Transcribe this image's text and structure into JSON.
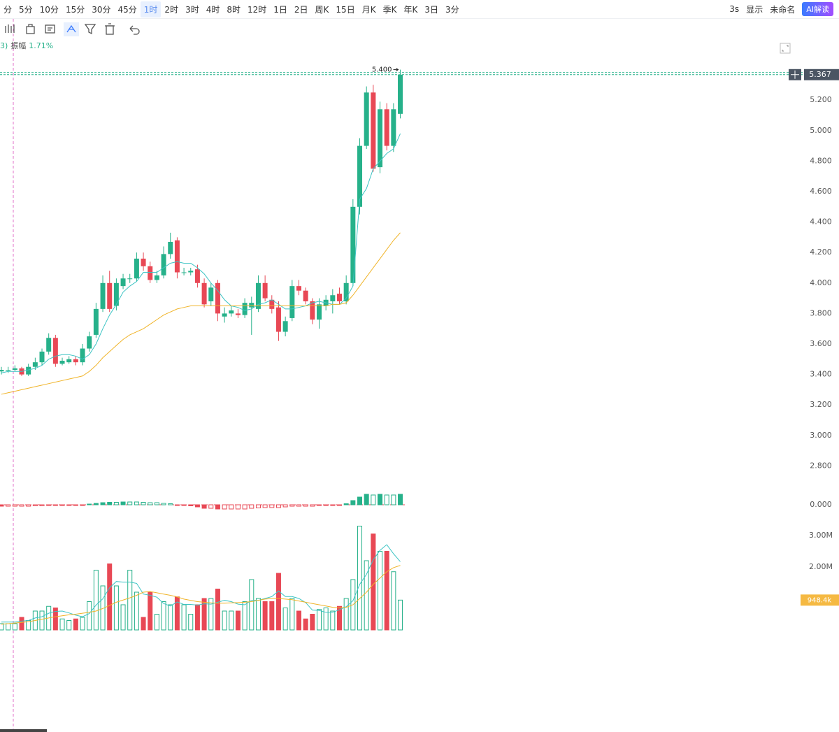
{
  "toolbar": {
    "timeframes": [
      "分",
      "5分",
      "10分",
      "15分",
      "30分",
      "45分",
      "1时",
      "2时",
      "3时",
      "4时",
      "8时",
      "12时",
      "1日",
      "2日",
      "周K",
      "15日",
      "月K",
      "季K",
      "年K",
      "3日",
      "3分"
    ],
    "active_index": 6,
    "right": [
      "3s",
      "显示",
      "未命名",
      "AI解读"
    ]
  },
  "info": {
    "prefix": "3)",
    "amplitude_label": "振幅",
    "amplitude": "1.71%"
  },
  "chart_data": {
    "type": "candlestick",
    "open": [
      3.42,
      3.43,
      3.43,
      3.44,
      3.4,
      3.45,
      3.48,
      3.55,
      3.64,
      3.47,
      3.48,
      3.5,
      3.48,
      3.57,
      3.66,
      3.83,
      4.0,
      3.85,
      3.98,
      4.03,
      4.03,
      4.16,
      4.11,
      4.02,
      4.05,
      4.19,
      4.28,
      4.07,
      4.07,
      4.09,
      4.0,
      3.88,
      4.0,
      3.78,
      3.8,
      3.8,
      3.79,
      3.84,
      3.83,
      4.0,
      3.89,
      3.84,
      3.68,
      3.77,
      3.98,
      3.95,
      3.88,
      3.76,
      3.85,
      3.88,
      3.93,
      3.88,
      4.0,
      4.5,
      4.9,
      5.25,
      4.76,
      5.14,
      4.9,
      5.11
    ],
    "high": [
      3.45,
      3.45,
      3.46,
      3.45,
      3.47,
      3.51,
      3.57,
      3.67,
      3.66,
      3.51,
      3.52,
      3.52,
      3.6,
      3.68,
      3.87,
      4.05,
      4.08,
      4.03,
      4.06,
      4.06,
      4.2,
      4.2,
      4.14,
      4.08,
      4.24,
      4.33,
      4.3,
      4.1,
      4.1,
      4.12,
      4.03,
      4.0,
      4.02,
      3.84,
      3.85,
      3.83,
      3.9,
      3.91,
      4.05,
      4.05,
      3.92,
      3.88,
      3.78,
      4.02,
      4.02,
      3.97,
      3.9,
      3.9,
      3.92,
      3.96,
      3.97,
      4.05,
      4.55,
      4.95,
      5.29,
      5.3,
      5.19,
      5.18,
      5.18,
      5.4
    ],
    "low": [
      3.4,
      3.41,
      3.42,
      3.39,
      3.39,
      3.43,
      3.46,
      3.53,
      3.45,
      3.46,
      3.47,
      3.46,
      3.46,
      3.55,
      3.64,
      3.81,
      3.81,
      3.82,
      3.96,
      4.0,
      4.01,
      4.08,
      4.0,
      4.0,
      4.03,
      4.16,
      4.03,
      4.05,
      4.05,
      3.97,
      3.84,
      3.85,
      3.75,
      3.74,
      3.78,
      3.77,
      3.77,
      3.66,
      3.81,
      3.88,
      3.8,
      3.62,
      3.65,
      3.75,
      3.92,
      3.86,
      3.73,
      3.7,
      3.82,
      3.8,
      3.86,
      3.86,
      3.98,
      4.45,
      4.88,
      4.73,
      4.72,
      4.87,
      4.86,
      5.08
    ],
    "close": [
      3.43,
      3.43,
      3.44,
      3.4,
      3.45,
      3.48,
      3.55,
      3.64,
      3.47,
      3.49,
      3.5,
      3.48,
      3.57,
      3.65,
      3.83,
      4.0,
      3.83,
      4.0,
      4.03,
      4.03,
      4.16,
      4.11,
      4.02,
      4.05,
      4.19,
      4.27,
      4.07,
      4.07,
      4.08,
      4.0,
      3.86,
      3.97,
      3.8,
      3.8,
      3.82,
      3.79,
      3.87,
      3.87,
      4.0,
      3.9,
      3.83,
      3.68,
      3.75,
      3.98,
      3.95,
      3.88,
      3.76,
      3.86,
      3.89,
      3.92,
      3.88,
      4.0,
      4.5,
      4.9,
      5.25,
      4.75,
      5.14,
      4.9,
      5.14,
      5.367
    ],
    "up_color": "#26b18a",
    "down_color": "#e84855",
    "ma_series": [
      {
        "color": "#3cc4c4",
        "values": [
          3.41,
          3.42,
          3.42,
          3.42,
          3.43,
          3.44,
          3.46,
          3.5,
          3.52,
          3.53,
          3.53,
          3.52,
          3.5,
          3.53,
          3.6,
          3.7,
          3.79,
          3.86,
          3.94,
          3.98,
          4.01,
          4.07,
          4.07,
          4.07,
          4.1,
          4.13,
          4.14,
          4.13,
          4.13,
          4.1,
          4.06,
          4.0,
          3.95,
          3.89,
          3.85,
          3.84,
          3.82,
          3.83,
          3.86,
          3.87,
          3.89,
          3.86,
          3.83,
          3.83,
          3.84,
          3.85,
          3.87,
          3.88,
          3.87,
          3.86,
          3.86,
          3.9,
          3.98,
          4.55,
          4.62,
          4.75,
          4.8,
          4.85,
          4.88,
          4.98
        ]
      },
      {
        "color": "#f0b429",
        "values": [
          3.27,
          3.28,
          3.29,
          3.3,
          3.31,
          3.32,
          3.33,
          3.34,
          3.35,
          3.36,
          3.37,
          3.38,
          3.39,
          3.42,
          3.46,
          3.51,
          3.55,
          3.59,
          3.63,
          3.66,
          3.68,
          3.7,
          3.73,
          3.76,
          3.79,
          3.81,
          3.83,
          3.84,
          3.85,
          3.85,
          3.85,
          3.85,
          3.85,
          3.85,
          3.85,
          3.85,
          3.85,
          3.85,
          3.85,
          3.85,
          3.85,
          3.85,
          3.85,
          3.85,
          3.85,
          3.85,
          3.85,
          3.85,
          3.85,
          3.86,
          3.86,
          3.87,
          3.92,
          3.98,
          4.04,
          4.1,
          4.16,
          4.22,
          4.28,
          4.33
        ]
      }
    ],
    "ylim": [
      2.6,
      5.6
    ],
    "yticks": [
      {
        "value": 5.2,
        "label": "5.200"
      },
      {
        "value": 5.0,
        "label": "5.000"
      },
      {
        "value": 4.8,
        "label": "4.800"
      },
      {
        "value": 4.6,
        "label": "4.600"
      },
      {
        "value": 4.4,
        "label": "4.400"
      },
      {
        "value": 4.2,
        "label": "4.200"
      },
      {
        "value": 4.0,
        "label": "4.000"
      },
      {
        "value": 3.8,
        "label": "3.800"
      },
      {
        "value": 3.6,
        "label": "3.600"
      },
      {
        "value": 3.4,
        "label": "3.400"
      },
      {
        "value": 3.2,
        "label": "3.200"
      },
      {
        "value": 3.0,
        "label": "3.000"
      },
      {
        "value": 2.8,
        "label": "2.800"
      }
    ],
    "max_label": {
      "value": 5.4,
      "label": "5.400"
    },
    "macd": {
      "values": [
        -0.004,
        -0.004,
        -0.004,
        -0.004,
        -0.004,
        -0.003,
        -0.003,
        -0.002,
        -0.002,
        -0.002,
        -0.002,
        -0.002,
        -0.002,
        0.002,
        0.004,
        0.006,
        0.007,
        0.007,
        0.008,
        0.008,
        0.008,
        0.007,
        0.006,
        0.006,
        0.004,
        0.003,
        -0.002,
        -0.002,
        -0.003,
        -0.006,
        -0.01,
        -0.01,
        -0.012,
        -0.012,
        -0.012,
        -0.012,
        -0.012,
        -0.01,
        -0.009,
        -0.008,
        -0.008,
        -0.008,
        -0.006,
        -0.004,
        -0.004,
        -0.004,
        -0.004,
        -0.002,
        -0.002,
        -0.001,
        -0.001,
        0.003,
        0.012,
        0.022,
        0.03,
        0.028,
        0.03,
        0.028,
        0.028,
        0.03
      ],
      "ylim": [
        -0.06,
        0.06
      ],
      "yticks": [
        {
          "value": 0,
          "label": "0.000"
        }
      ]
    },
    "volume": {
      "values": [
        0.2,
        0.2,
        0.2,
        0.4,
        0.3,
        0.6,
        0.6,
        0.75,
        0.7,
        0.35,
        0.3,
        0.35,
        0.4,
        0.9,
        1.9,
        1.4,
        2.1,
        1.4,
        0.8,
        1.9,
        1.2,
        0.4,
        1.2,
        0.5,
        0.9,
        0.8,
        1.05,
        0.8,
        0.5,
        0.8,
        1.0,
        1.0,
        1.3,
        0.6,
        0.6,
        0.6,
        0.9,
        1.6,
        1.0,
        0.9,
        0.9,
        1.8,
        0.7,
        1.0,
        0.6,
        0.35,
        0.5,
        0.65,
        0.7,
        0.6,
        0.75,
        1.0,
        1.6,
        3.3,
        2.2,
        3.05,
        2.5,
        2.5,
        1.85,
        0.9484
      ],
      "last_label": "948.4k",
      "label_color": "#f5b942",
      "ma_series": [
        {
          "color": "#3cc4c4",
          "values": [
            0.25,
            0.25,
            0.25,
            0.28,
            0.3,
            0.38,
            0.42,
            0.53,
            0.59,
            0.6,
            0.54,
            0.47,
            0.42,
            0.52,
            0.79,
            0.99,
            1.34,
            1.54,
            1.52,
            1.52,
            1.48,
            1.14,
            1.1,
            1.04,
            0.84,
            0.76,
            0.89,
            0.81,
            0.81,
            0.79,
            0.83,
            0.82,
            0.88,
            0.94,
            0.9,
            0.82,
            0.8,
            0.94,
            0.94,
            1.0,
            1.06,
            1.24,
            1.06,
            1.06,
            1.0,
            0.87,
            0.63,
            0.62,
            0.56,
            0.56,
            0.64,
            0.74,
            0.93,
            1.45,
            1.77,
            2.23,
            2.53,
            2.71,
            2.42,
            2.17
          ]
        },
        {
          "color": "#f0b429",
          "values": [
            0.18,
            0.2,
            0.22,
            0.24,
            0.26,
            0.3,
            0.34,
            0.38,
            0.42,
            0.45,
            0.48,
            0.5,
            0.53,
            0.56,
            0.6,
            0.68,
            0.78,
            0.88,
            0.95,
            1.02,
            1.1,
            1.2,
            1.22,
            1.18,
            1.14,
            1.1,
            1.05,
            0.98,
            0.94,
            0.9,
            0.88,
            0.86,
            0.85,
            0.85,
            0.86,
            0.87,
            0.88,
            0.9,
            0.94,
            0.98,
            1.0,
            1.0,
            0.98,
            0.96,
            0.92,
            0.88,
            0.84,
            0.8,
            0.76,
            0.72,
            0.7,
            0.72,
            0.8,
            1.0,
            1.2,
            1.45,
            1.65,
            1.85,
            1.98,
            2.05
          ]
        }
      ],
      "ylim": [
        0,
        4
      ],
      "yticks": [
        {
          "value": 3,
          "label": "3.00M"
        },
        {
          "value": 2,
          "label": "2.00M"
        }
      ]
    }
  }
}
